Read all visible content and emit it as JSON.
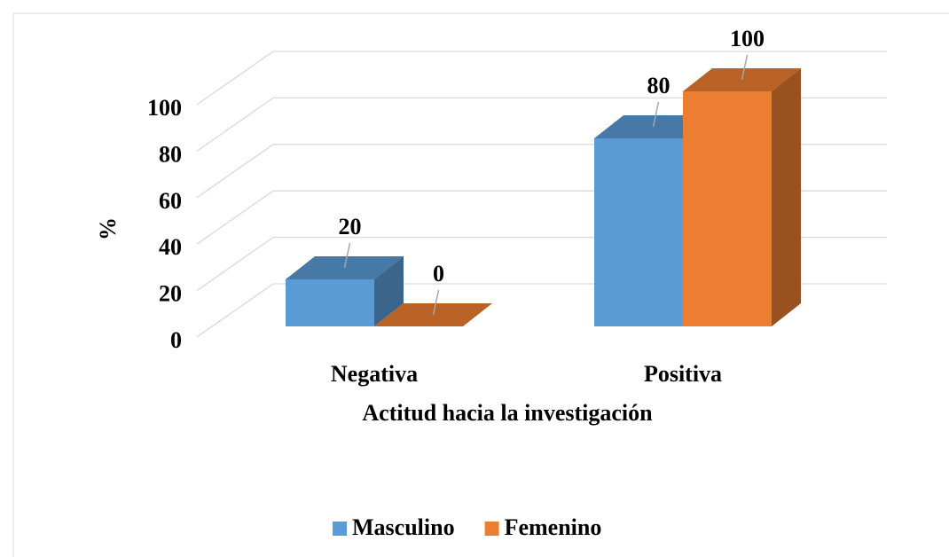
{
  "chart_data": {
    "type": "bar3d",
    "categories": [
      "Negativa",
      "Positiva"
    ],
    "series": [
      {
        "name": "Masculino",
        "color": "#5b9bd5",
        "values": [
          20,
          80
        ]
      },
      {
        "name": "Femenino",
        "color": "#ed7d31",
        "values": [
          0,
          100
        ]
      }
    ],
    "ylabel": "%",
    "xlabel": "Actitud hacia la investigación",
    "ylim": [
      0,
      100
    ],
    "yticks": [
      0,
      20,
      40,
      60,
      80,
      100
    ],
    "grid": true,
    "legend": "bottom"
  }
}
